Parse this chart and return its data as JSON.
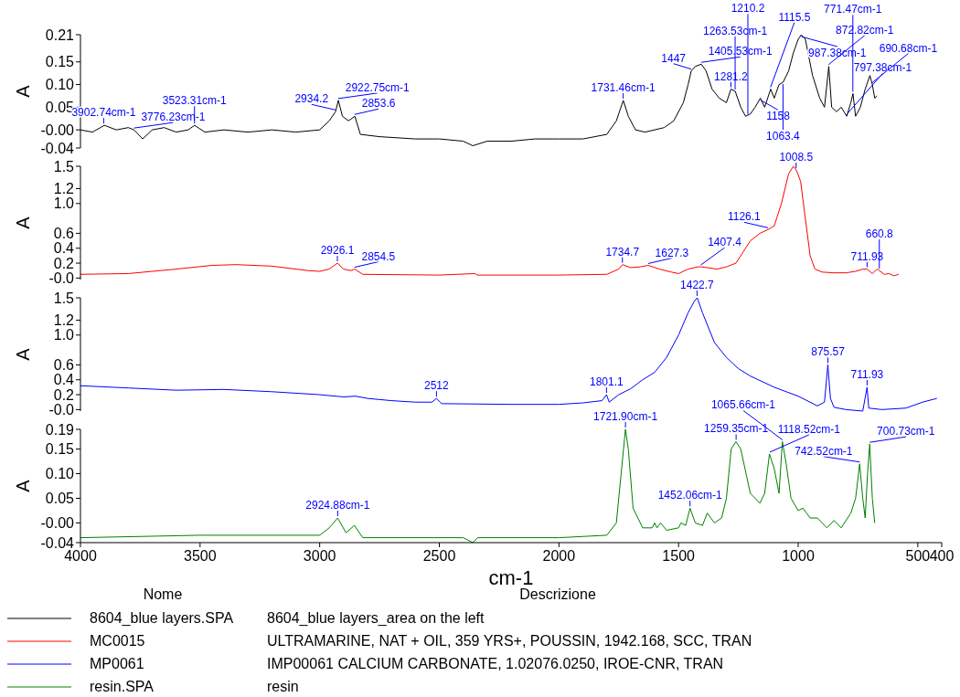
{
  "chart_data": [
    {
      "type": "line",
      "ylabel": "A",
      "xlim": [
        4000,
        400
      ],
      "ylim": [
        -0.04,
        0.21
      ],
      "tick_labels": "y",
      "legend": "bottom",
      "legend_title": "Nome",
      "yticks": [
        -0.04,
        {
          "value": 0,
          "label": "-0.00"
        },
        0.05,
        {
          "value": 0.1,
          "label": "0.10"
        },
        0.15,
        0.21
      ],
      "x": [
        4000,
        3950,
        3900,
        3850,
        3800,
        3776,
        3740,
        3700,
        3650,
        3600,
        3550,
        3523,
        3480,
        3400,
        3300,
        3200,
        3100,
        3000,
        2960,
        2934,
        2922,
        2905,
        2880,
        2853,
        2830,
        2750,
        2600,
        2500,
        2400,
        2360,
        2300,
        2200,
        2100,
        2000,
        1900,
        1800,
        1760,
        1731,
        1710,
        1680,
        1640,
        1600,
        1560,
        1520,
        1480,
        1460,
        1447,
        1430,
        1405,
        1385,
        1360,
        1330,
        1300,
        1281,
        1263,
        1240,
        1220,
        1200,
        1180,
        1158,
        1140,
        1115,
        1100,
        1080,
        1063,
        1040,
        1020,
        1000,
        987,
        970,
        940,
        910,
        890,
        872,
        860,
        840,
        820,
        797,
        780,
        771,
        760,
        740,
        720,
        700,
        690,
        680,
        670
      ],
      "series": [
        {
          "name": "8604_blue layers.SPA",
          "color": "#000000",
          "values": [
            0,
            -0.005,
            0.01,
            0,
            0.005,
            0,
            -0.02,
            0,
            0.005,
            -0.005,
            0,
            0.01,
            -0.005,
            0,
            -0.005,
            0,
            -0.005,
            0,
            0.02,
            0.04,
            0.065,
            0.03,
            0.02,
            0.03,
            -0.01,
            -0.015,
            -0.02,
            -0.02,
            -0.025,
            -0.035,
            -0.025,
            -0.025,
            -0.02,
            -0.02,
            -0.02,
            -0.01,
            0.02,
            0.065,
            0.03,
            0,
            -0.005,
            0,
            0.005,
            0.02,
            0.06,
            0.1,
            0.13,
            0.14,
            0.145,
            0.13,
            0.09,
            0.07,
            0.06,
            0.09,
            0.085,
            0.05,
            0.03,
            0.035,
            0.05,
            0.07,
            0.05,
            0.09,
            0.07,
            0.1,
            0.105,
            0.13,
            0.17,
            0.2,
            0.21,
            0.2,
            0.12,
            0.07,
            0.05,
            0.14,
            0.05,
            0.04,
            0.05,
            0.03,
            0.06,
            0.08,
            0.03,
            0.05,
            0.09,
            0.12,
            0.1,
            0.07,
            0.075
          ]
        }
      ],
      "annotations": [
        "Descrizione",
        "8604_blue layers_area on the left",
        {
          "text": "3902.74cm-1",
          "x": 3902.74,
          "y": 0.01
        },
        {
          "text": "3776.23cm-1",
          "x": 3776.23,
          "y": 0
        },
        {
          "text": "3523.31cm-1",
          "x": 3523.31,
          "y": 0.01
        },
        {
          "text": "2934.2",
          "x": 2934.2,
          "y": 0.04
        },
        {
          "text": "2922.75cm-1",
          "x": 2922.75,
          "y": 0.065
        },
        {
          "text": "2853.6",
          "x": 2853.6,
          "y": 0.03
        },
        {
          "text": "1731.46cm-1",
          "x": 1731.46,
          "y": 0.065
        },
        {
          "text": "1447",
          "x": 1447,
          "y": 0.13
        },
        {
          "text": "1405.53cm-1",
          "x": 1405.53,
          "y": 0.145
        },
        {
          "text": "1281.2",
          "x": 1281.2,
          "y": 0.09
        },
        {
          "text": "1263.53cm-1",
          "x": 1263.53,
          "y": 0.085
        },
        {
          "text": "1210.2",
          "x": 1210.2,
          "y": 0.03
        },
        {
          "text": "1158",
          "x": 1158,
          "y": 0.07
        },
        {
          "text": "1115.5",
          "x": 1115.5,
          "y": 0.09
        },
        {
          "text": "1063.4",
          "x": 1063.4,
          "y": 0.105
        },
        {
          "text": "987.38cm-1",
          "x": 987.38,
          "y": 0.21
        },
        {
          "text": "872.82cm-1",
          "x": 872.82,
          "y": 0.14
        },
        {
          "text": "797.38cm-1",
          "x": 797.38,
          "y": 0.03
        },
        {
          "text": "771.47cm-1",
          "x": 771.47,
          "y": 0.08
        },
        {
          "text": "690.68cm-1",
          "x": 690.68,
          "y": 0.1
        }
      ]
    },
    {
      "type": "line",
      "ylabel": "A",
      "xlim": [
        4000,
        400
      ],
      "ylim": [
        -0.02,
        1.5
      ],
      "tick_labels": "y",
      "legend": "bottom",
      "yticks": [
        {
          "value": 0,
          "label": "-0.0"
        },
        0.2,
        0.4,
        0.6,
        {
          "value": 1,
          "label": "1.0"
        },
        1.2,
        1.5
      ],
      "x": [
        4000,
        3800,
        3600,
        3450,
        3350,
        3200,
        3050,
        3000,
        2960,
        2926,
        2900,
        2870,
        2854,
        2820,
        2500,
        2352,
        2340,
        2000,
        1800,
        1750,
        1734,
        1700,
        1660,
        1627,
        1580,
        1530,
        1500,
        1460,
        1420,
        1407,
        1380,
        1340,
        1300,
        1260,
        1230,
        1200,
        1160,
        1126,
        1100,
        1070,
        1040,
        1020,
        1008,
        990,
        970,
        950,
        930,
        900,
        850,
        800,
        760,
        730,
        712,
        690,
        670,
        661,
        640,
        620,
        600,
        580
      ],
      "series": [
        {
          "name": "MC0015",
          "color": "#ff0000",
          "values": [
            0.05,
            0.06,
            0.12,
            0.17,
            0.18,
            0.16,
            0.1,
            0.09,
            0.12,
            0.2,
            0.12,
            0.1,
            0.12,
            0.05,
            0.04,
            0.06,
            0.04,
            0.04,
            0.05,
            0.12,
            0.18,
            0.14,
            0.15,
            0.17,
            0.12,
            0.08,
            0.06,
            0.12,
            0.15,
            0.15,
            0.14,
            0.12,
            0.15,
            0.2,
            0.35,
            0.5,
            0.6,
            0.65,
            0.7,
            1.0,
            1.4,
            1.5,
            1.45,
            1.3,
            0.8,
            0.3,
            0.12,
            0.08,
            0.07,
            0.07,
            0.09,
            0.12,
            0.12,
            0.06,
            0.12,
            0.1,
            0.05,
            0.06,
            0.03,
            0.05
          ]
        }
      ],
      "annotations": [
        "ULTRAMARINE, NAT + OIL, 359 YRS+, POUSSIN, 1942.168, SCC, TRAN",
        {
          "text": "2926.1",
          "x": 2926.1,
          "y": 0.2
        },
        {
          "text": "2854.5",
          "x": 2854.5,
          "y": 0.12
        },
        {
          "text": "1734.7",
          "x": 1734.7,
          "y": 0.18
        },
        {
          "text": "1627.3",
          "x": 1627.3,
          "y": 0.17
        },
        {
          "text": "1407.4",
          "x": 1407.4,
          "y": 0.15
        },
        {
          "text": "1126.1",
          "x": 1126.1,
          "y": 0.65
        },
        {
          "text": "1008.5",
          "x": 1008.5,
          "y": 1.45
        },
        {
          "text": "711.93",
          "x": 711.93,
          "y": 0.12
        },
        {
          "text": "660.8",
          "x": 660.8,
          "y": 0.1
        }
      ]
    },
    {
      "type": "line",
      "ylabel": "A",
      "xlim": [
        4000,
        400
      ],
      "ylim": [
        -0.02,
        1.5
      ],
      "tick_labels": "y",
      "legend": "bottom",
      "yticks": [
        {
          "value": 0,
          "label": "-0.0"
        },
        0.2,
        0.4,
        0.6,
        {
          "value": 1,
          "label": "1.0"
        },
        1.2,
        1.5
      ],
      "x": [
        4000,
        3800,
        3600,
        3400,
        3200,
        3000,
        2900,
        2850,
        2800,
        2700,
        2600,
        2530,
        2512,
        2490,
        2200,
        2000,
        1900,
        1820,
        1801,
        1790,
        1750,
        1700,
        1650,
        1600,
        1550,
        1500,
        1460,
        1435,
        1422,
        1400,
        1350,
        1300,
        1250,
        1200,
        1100,
        1000,
        920,
        890,
        876,
        865,
        850,
        800,
        730,
        712,
        705,
        650,
        550,
        480,
        420
      ],
      "series": [
        {
          "name": "MP0061",
          "color": "#0000ff",
          "values": [
            0.32,
            0.29,
            0.26,
            0.27,
            0.24,
            0.2,
            0.17,
            0.18,
            0.15,
            0.12,
            0.1,
            0.1,
            0.15,
            0.08,
            0.07,
            0.07,
            0.09,
            0.12,
            0.2,
            0.1,
            0.2,
            0.28,
            0.4,
            0.5,
            0.7,
            1.0,
            1.3,
            1.45,
            1.5,
            1.3,
            0.9,
            0.7,
            0.55,
            0.45,
            0.3,
            0.18,
            0.05,
            0.1,
            0.6,
            0.15,
            0.03,
            0,
            -0.02,
            0.3,
            0.02,
            0,
            0.02,
            0.1,
            0.15
          ]
        }
      ],
      "annotations": [
        "IMP00061 CALCIUM CARBONATE, 1.02076.0250, IROE-CNR, TRAN",
        {
          "text": "2512",
          "x": 2512,
          "y": 0.15
        },
        {
          "text": "1801.1",
          "x": 1801.1,
          "y": 0.2
        },
        {
          "text": "1422.7",
          "x": 1422.7,
          "y": 1.5
        },
        {
          "text": "875.57",
          "x": 875.57,
          "y": 0.6
        },
        {
          "text": "711.93",
          "x": 711.93,
          "y": 0.3
        }
      ]
    },
    {
      "type": "line",
      "ylabel": "A",
      "xlabel": "cm-1",
      "xlim": [
        4000,
        400
      ],
      "ylim": [
        -0.04,
        0.19
      ],
      "legend": "bottom",
      "xticks": [
        4000,
        3500,
        3000,
        2500,
        2000,
        1500,
        1000,
        500,
        400
      ],
      "yticks": [
        -0.04,
        {
          "value": 0,
          "label": "-0.00"
        },
        0.05,
        {
          "value": 0.1,
          "label": "0.10"
        },
        0.15,
        0.19
      ],
      "x": [
        4000,
        3500,
        3000,
        2960,
        2925,
        2890,
        2855,
        2820,
        2400,
        2360,
        2340,
        2000,
        1800,
        1760,
        1740,
        1722,
        1710,
        1690,
        1650,
        1610,
        1600,
        1590,
        1575,
        1550,
        1500,
        1490,
        1470,
        1452,
        1430,
        1400,
        1380,
        1350,
        1320,
        1300,
        1280,
        1260,
        1240,
        1200,
        1160,
        1140,
        1120,
        1100,
        1080,
        1066,
        1050,
        1030,
        1000,
        980,
        950,
        920,
        880,
        850,
        820,
        780,
        760,
        743,
        730,
        720,
        710,
        701,
        690,
        680
      ],
      "series": [
        {
          "name": "resin.SPA",
          "color": "#008000",
          "values": [
            -0.03,
            -0.025,
            -0.025,
            -0.01,
            0.01,
            -0.02,
            -0.005,
            -0.03,
            -0.03,
            -0.04,
            -0.03,
            -0.03,
            -0.025,
            0,
            0.1,
            0.19,
            0.15,
            0.03,
            -0.01,
            -0.01,
            0,
            -0.01,
            0,
            -0.015,
            -0.01,
            0,
            -0.005,
            0.03,
            0,
            -0.005,
            0.02,
            0,
            0.01,
            0.05,
            0.15,
            0.165,
            0.15,
            0.06,
            0.04,
            0.06,
            0.14,
            0.11,
            0.06,
            0.165,
            0.12,
            0.05,
            0.025,
            0.03,
            0.01,
            0.01,
            -0.01,
            0.005,
            -0.01,
            0.02,
            0.05,
            0.12,
            0.05,
            0.01,
            0.1,
            0.16,
            0.05,
            0
          ]
        }
      ],
      "annotations": [
        "resin",
        {
          "text": "2924.88cm-1",
          "x": 2924.88,
          "y": 0.01
        },
        {
          "text": "1721.90cm-1",
          "x": 1721.9,
          "y": 0.19
        },
        {
          "text": "1452.06cm-1",
          "x": 1452.06,
          "y": 0.03
        },
        {
          "text": "1259.35cm-1",
          "x": 1259.35,
          "y": 0.165
        },
        {
          "text": "1118.52cm-1",
          "x": 1118.52,
          "y": 0.14
        },
        {
          "text": "1065.66cm-1",
          "x": 1065.66,
          "y": 0.165
        },
        {
          "text": "742.52cm-1",
          "x": 742.52,
          "y": 0.12
        },
        {
          "text": "700.73cm-1",
          "x": 700.73,
          "y": 0.16
        }
      ]
    }
  ]
}
